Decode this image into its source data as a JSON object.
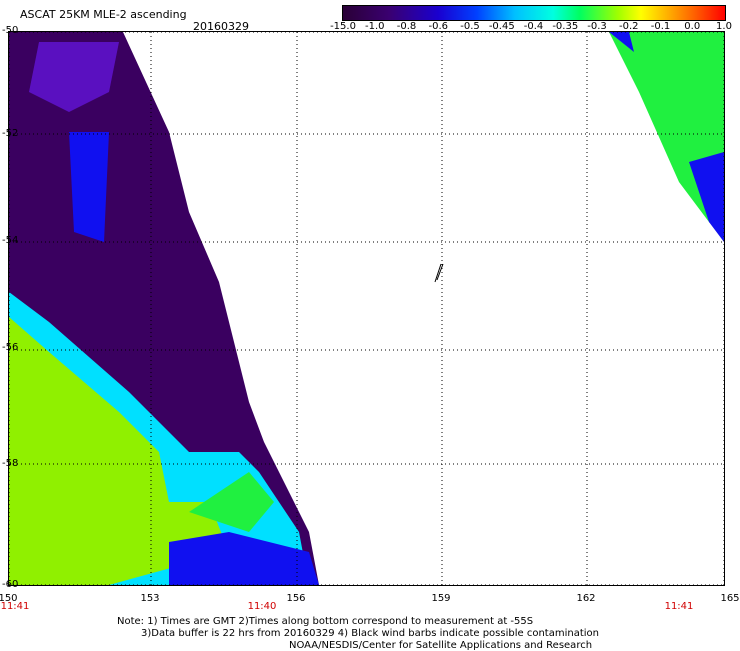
{
  "header": {
    "title": "ASCAT 25KM MLE-2 ascending",
    "date": "20160329"
  },
  "colorbar": {
    "ticks": [
      "-15.0",
      "-1.0",
      "-0.8",
      "-0.6",
      "-0.5",
      "-0.45",
      "-0.4",
      "-0.35",
      "-0.3",
      "-0.2",
      "-0.1",
      "0.0",
      "1.0"
    ]
  },
  "axes": {
    "lat_labels": [
      "-50",
      "-52",
      "-54",
      "-56",
      "-58",
      "-60"
    ],
    "lon_labels": [
      "150",
      "153",
      "156",
      "159",
      "162",
      "165"
    ],
    "time_labels": [
      "11:41",
      "11:40",
      "11:41"
    ]
  },
  "notes": {
    "line1": "Note: 1) Times are GMT 2)Times along bottom correspond to measurement at -55S",
    "line2": "3)Data buffer is 22 hrs from 20160329 4) Black wind barbs indicate possible contamination",
    "line3": "NOAA/NESDIS/Center for Satellite Applications and Research"
  },
  "colors": {
    "very_low": "#3a0060",
    "low": "#5a10c0",
    "mid_blue": "#1010f0",
    "cyan": "#00e0ff",
    "green": "#20f040",
    "yellow_green": "#90f000"
  }
}
